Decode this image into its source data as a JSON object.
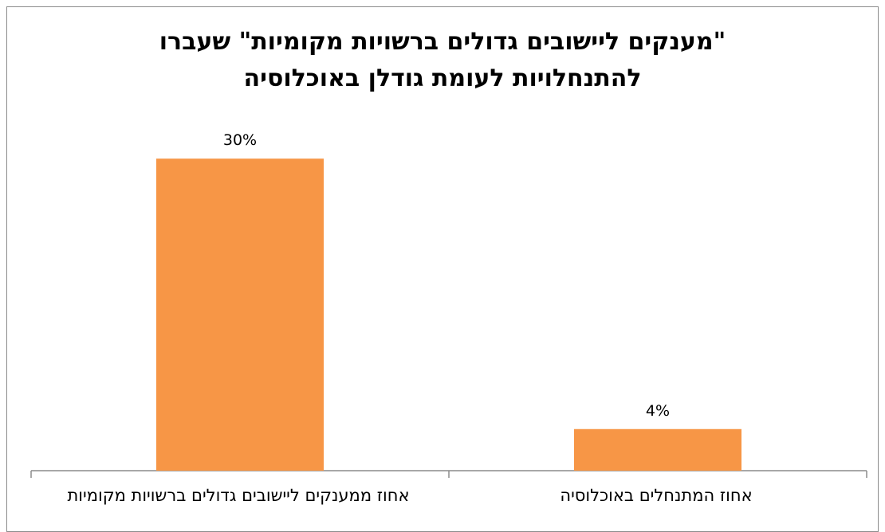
{
  "chart_data": {
    "type": "bar",
    "title": "\"מענקים ליישובים גדולים ברשויות מקומיות\" שעברו להתנחלויות לעומת גודלן באוכלוסיה",
    "title_lines": [
      "\"מענקים ליישובים גדולים ברשויות מקומיות\" שעברו",
      "להתנחלויות לעומת גודלן באוכלוסיה"
    ],
    "categories": [
      "אחוז ממענקים ליישובים גדולים ברשויות מקומיות",
      "אחוז המתנחלים באוכלוסיה"
    ],
    "values": [
      30,
      4
    ],
    "data_labels": [
      "30%",
      "4%"
    ],
    "ylim": [
      0,
      33
    ],
    "grid": false,
    "bar_color": "#F79646",
    "axis_color": "#8C8C8C"
  }
}
